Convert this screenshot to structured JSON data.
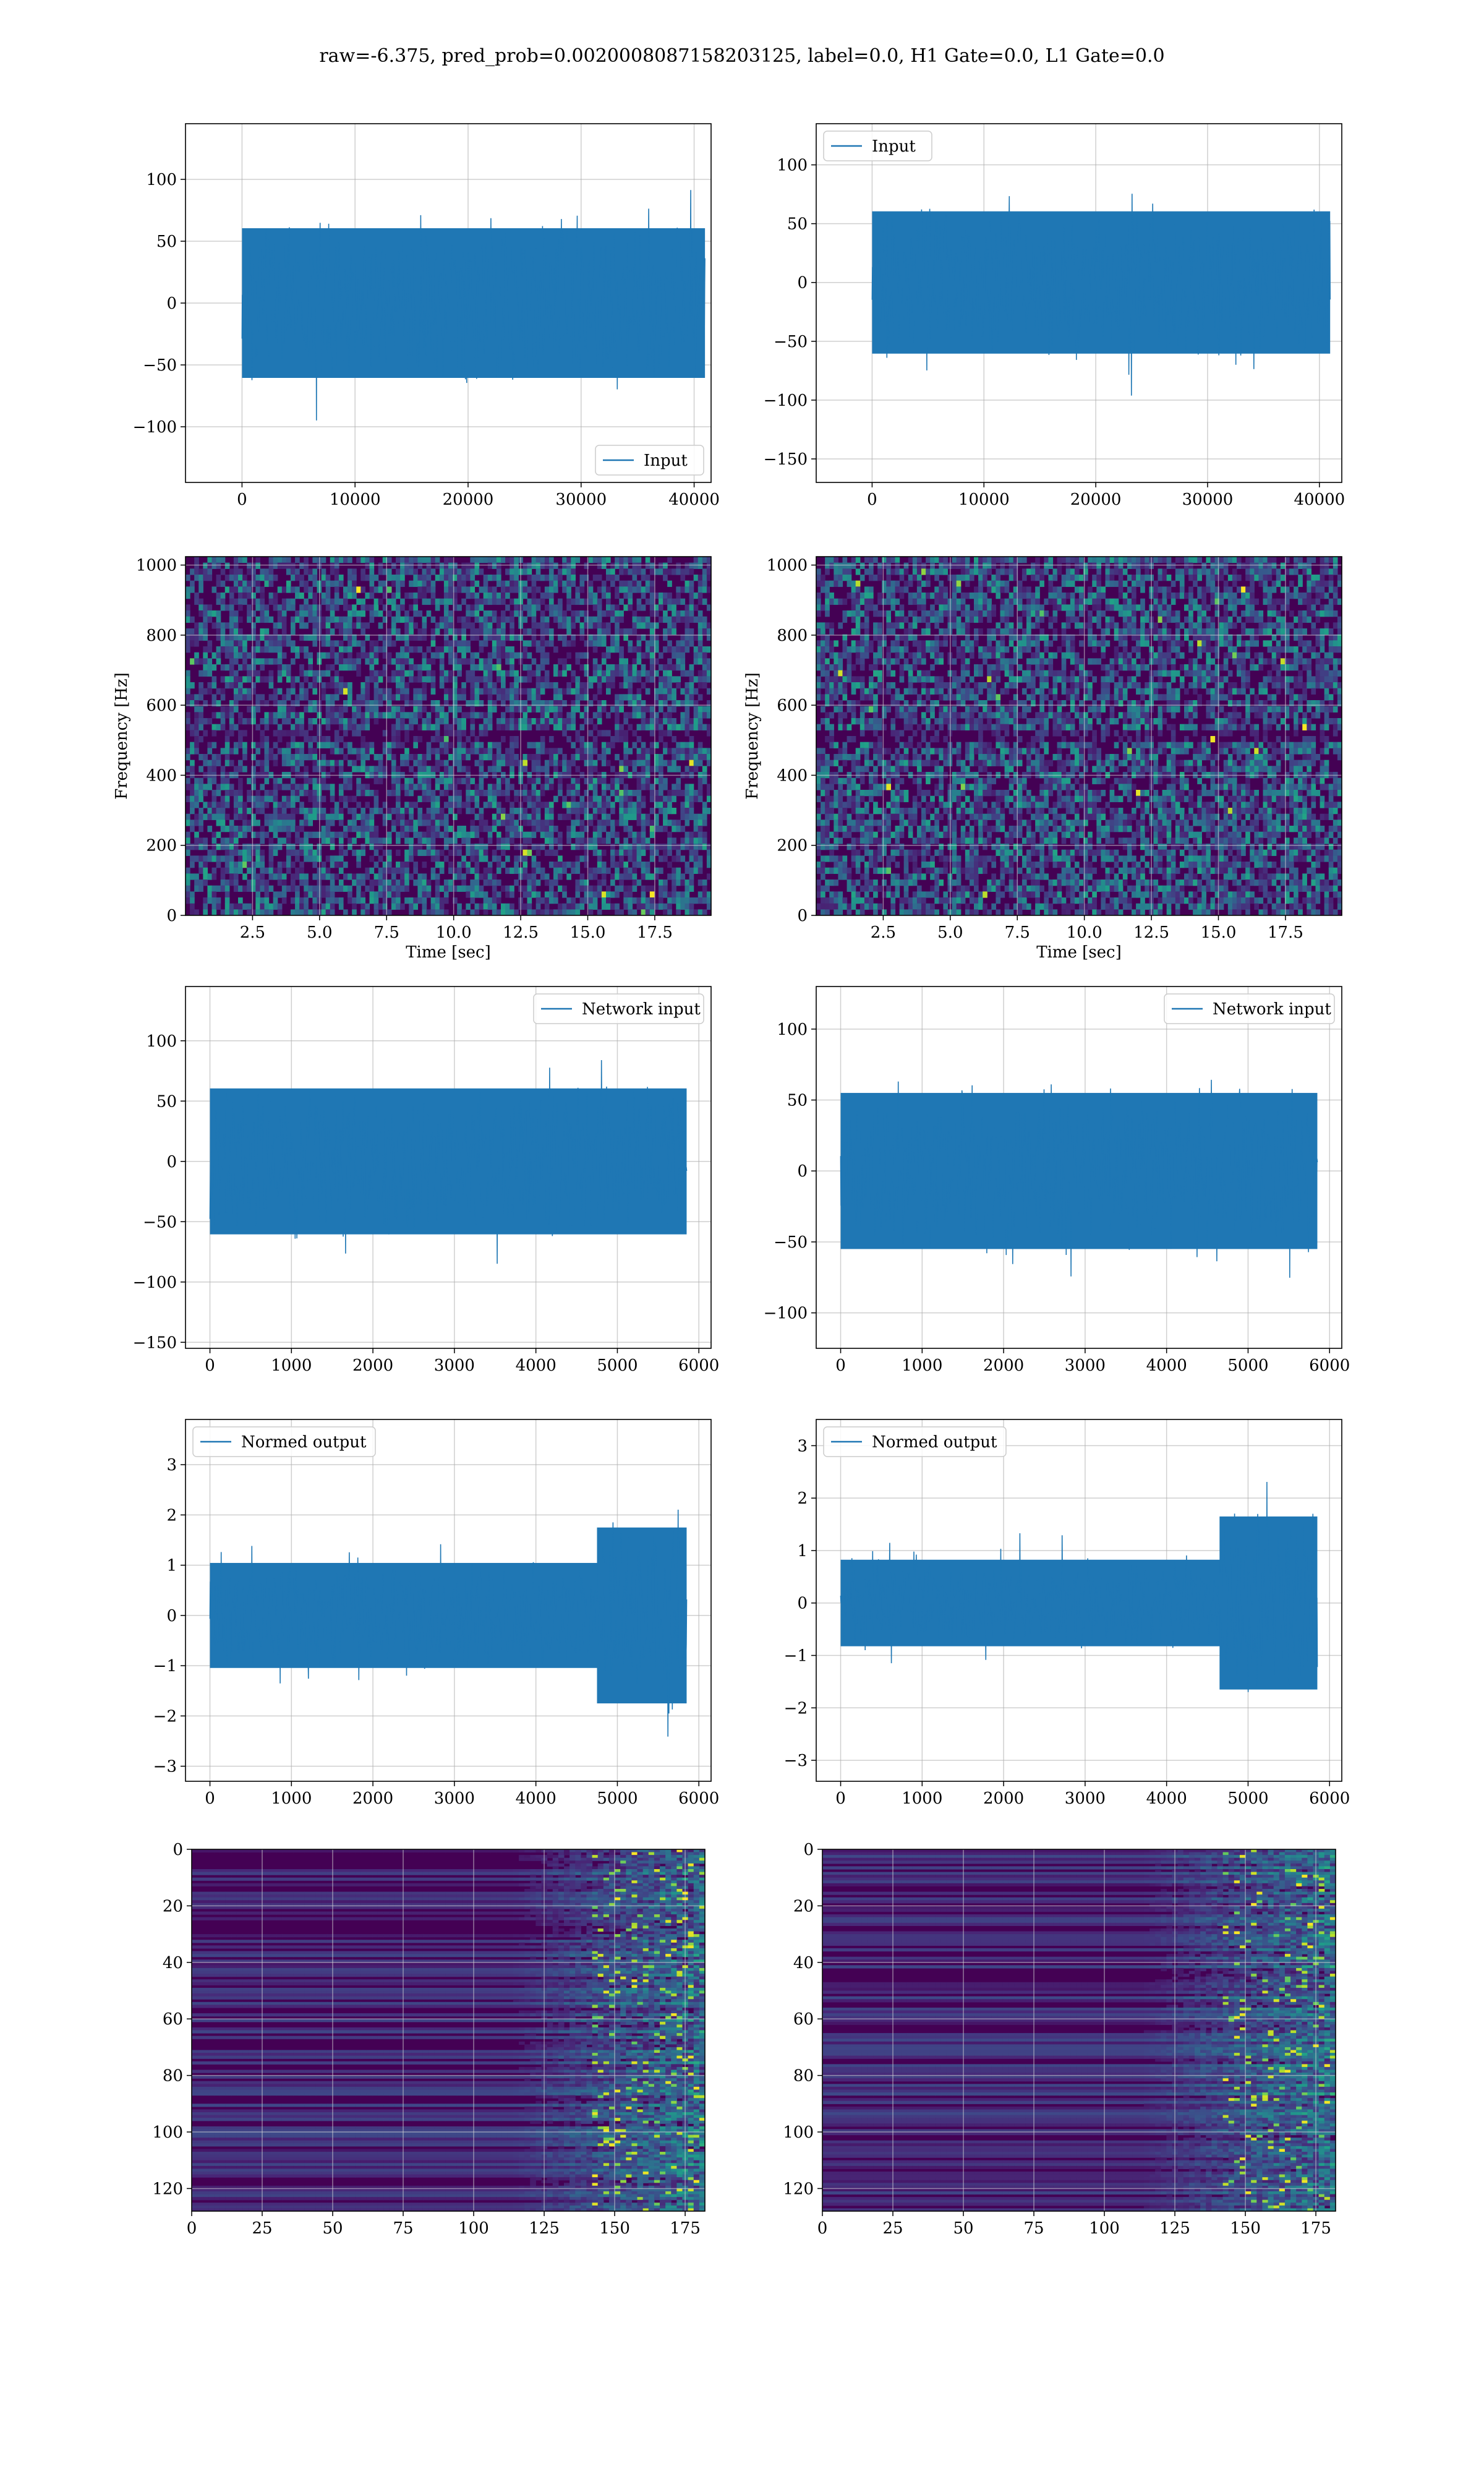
{
  "suptitle": "raw=-6.375, pred_prob=0.0020008087158203125, label=0.0, H1 Gate=0.0, L1 Gate=0.0",
  "colors": {
    "line": "#1f77b4",
    "grid": "#b0b0b0",
    "viridis_low": "#440154",
    "viridis_high": "#fde725"
  },
  "chart_data": [
    {
      "type": "line",
      "xlim": [
        -5000,
        41500
      ],
      "ylim": [
        -145,
        145
      ],
      "xticks": [
        0,
        10000,
        20000,
        30000,
        40000
      ],
      "xtick_labels": [
        "0",
        "10000",
        "20000",
        "30000",
        "40000"
      ],
      "yticks": [
        -100,
        -50,
        0,
        50,
        100
      ],
      "ytick_labels": [
        "−100",
        "−50",
        "0",
        "50",
        "100"
      ],
      "xlabel": "",
      "ylabel": "",
      "grid": true,
      "legend": "lower-right",
      "series": [
        {
          "name": "Input",
          "x_range": [
            0,
            40960
          ],
          "amplitude": 110,
          "seed": 11
        }
      ]
    },
    {
      "type": "line",
      "xlim": [
        -5000,
        42000
      ],
      "ylim": [
        -170,
        135
      ],
      "xticks": [
        0,
        10000,
        20000,
        30000,
        40000
      ],
      "xtick_labels": [
        "0",
        "10000",
        "20000",
        "30000",
        "40000"
      ],
      "yticks": [
        -150,
        -100,
        -50,
        0,
        50,
        100
      ],
      "ytick_labels": [
        "−150",
        "−100",
        "−50",
        "0",
        "50",
        "100"
      ],
      "xlabel": "",
      "ylabel": "",
      "grid": true,
      "legend": "top-left",
      "series": [
        {
          "name": "Input",
          "x_range": [
            0,
            40960
          ],
          "amplitude": 110,
          "seed": 23
        }
      ]
    },
    {
      "type": "heatmap",
      "xlim": [
        0,
        19.6
      ],
      "ylim": [
        0,
        1024
      ],
      "xticks": [
        2.5,
        5.0,
        7.5,
        10.0,
        12.5,
        15.0,
        17.5
      ],
      "xtick_labels": [
        "2.5",
        "5.0",
        "7.5",
        "10.0",
        "12.5",
        "15.0",
        "17.5"
      ],
      "yticks": [
        0,
        200,
        400,
        600,
        800,
        1000
      ],
      "ytick_labels": [
        "0",
        "200",
        "400",
        "600",
        "800",
        "1000"
      ],
      "xlabel": "Time [sec]",
      "ylabel": "Frequency [Hz]",
      "grid": true,
      "colormap": "viridis",
      "seed": 31
    },
    {
      "type": "heatmap",
      "xlim": [
        0,
        19.6
      ],
      "ylim": [
        0,
        1024
      ],
      "xticks": [
        2.5,
        5.0,
        7.5,
        10.0,
        12.5,
        15.0,
        17.5
      ],
      "xtick_labels": [
        "2.5",
        "5.0",
        "7.5",
        "10.0",
        "12.5",
        "15.0",
        "17.5"
      ],
      "yticks": [
        0,
        200,
        400,
        600,
        800,
        1000
      ],
      "ytick_labels": [
        "0",
        "200",
        "400",
        "600",
        "800",
        "1000"
      ],
      "xlabel": "Time [sec]",
      "ylabel": "Frequency [Hz]",
      "grid": true,
      "colormap": "viridis",
      "seed": 47
    },
    {
      "type": "line",
      "xlim": [
        -300,
        6150
      ],
      "ylim": [
        -155,
        145
      ],
      "xticks": [
        0,
        1000,
        2000,
        3000,
        4000,
        5000,
        6000
      ],
      "xtick_labels": [
        "0",
        "1000",
        "2000",
        "3000",
        "4000",
        "5000",
        "6000"
      ],
      "yticks": [
        -150,
        -100,
        -50,
        0,
        50,
        100
      ],
      "ytick_labels": [
        "−150",
        "−100",
        "−50",
        "0",
        "50",
        "100"
      ],
      "xlabel": "",
      "ylabel": "",
      "grid": true,
      "legend": "top-right",
      "series": [
        {
          "name": "Network input",
          "x_range": [
            0,
            5850
          ],
          "amplitude": 110,
          "seed": 53
        }
      ]
    },
    {
      "type": "line",
      "xlim": [
        -300,
        6150
      ],
      "ylim": [
        -125,
        130
      ],
      "xticks": [
        0,
        1000,
        2000,
        3000,
        4000,
        5000,
        6000
      ],
      "xtick_labels": [
        "0",
        "1000",
        "2000",
        "3000",
        "4000",
        "5000",
        "6000"
      ],
      "yticks": [
        -100,
        -50,
        0,
        50,
        100
      ],
      "ytick_labels": [
        "−100",
        "−50",
        "0",
        "50",
        "100"
      ],
      "xlabel": "",
      "ylabel": "",
      "grid": true,
      "legend": "top-right",
      "series": [
        {
          "name": "Network input",
          "x_range": [
            0,
            5850
          ],
          "amplitude": 100,
          "seed": 61
        }
      ]
    },
    {
      "type": "line",
      "xlim": [
        -300,
        6150
      ],
      "ylim": [
        -3.3,
        3.9
      ],
      "xticks": [
        0,
        1000,
        2000,
        3000,
        4000,
        5000,
        6000
      ],
      "xtick_labels": [
        "0",
        "1000",
        "2000",
        "3000",
        "4000",
        "5000",
        "6000"
      ],
      "yticks": [
        -3,
        -2,
        -1,
        0,
        1,
        2,
        3
      ],
      "ytick_labels": [
        "−3",
        "−2",
        "−1",
        "0",
        "1",
        "2",
        "3"
      ],
      "xlabel": "",
      "ylabel": "",
      "grid": true,
      "legend": "top-left",
      "series": [
        {
          "name": "Normed output",
          "x_range": [
            0,
            5850
          ],
          "amplitude": 1.9,
          "burst_start": 4750,
          "burst_amplitude": 3.5,
          "seed": 71
        }
      ]
    },
    {
      "type": "line",
      "xlim": [
        -300,
        6150
      ],
      "ylim": [
        -3.4,
        3.5
      ],
      "xticks": [
        0,
        1000,
        2000,
        3000,
        4000,
        5000,
        6000
      ],
      "xtick_labels": [
        "0",
        "1000",
        "2000",
        "3000",
        "4000",
        "5000",
        "6000"
      ],
      "yticks": [
        -3,
        -2,
        -1,
        0,
        1,
        2,
        3
      ],
      "ytick_labels": [
        "−3",
        "−2",
        "−1",
        "0",
        "1",
        "2",
        "3"
      ],
      "xlabel": "",
      "ylabel": "",
      "grid": true,
      "legend": "top-left",
      "series": [
        {
          "name": "Normed output",
          "x_range": [
            0,
            5850
          ],
          "amplitude": 1.5,
          "burst_start": 4650,
          "burst_amplitude": 3.3,
          "seed": 83
        }
      ]
    },
    {
      "type": "heatmap",
      "xlim": [
        0,
        182
      ],
      "ylim": [
        128,
        0
      ],
      "xticks": [
        0,
        25,
        50,
        75,
        100,
        125,
        150,
        175
      ],
      "xtick_labels": [
        "0",
        "25",
        "50",
        "75",
        "100",
        "125",
        "150",
        "175"
      ],
      "yticks": [
        0,
        20,
        40,
        60,
        80,
        100,
        120
      ],
      "ytick_labels": [
        "0",
        "20",
        "40",
        "60",
        "80",
        "100",
        "120"
      ],
      "xlabel": "",
      "ylabel": "",
      "grid": true,
      "colormap": "viridis",
      "seed": 97
    },
    {
      "type": "heatmap",
      "xlim": [
        0,
        182
      ],
      "ylim": [
        128,
        0
      ],
      "xticks": [
        0,
        25,
        50,
        75,
        100,
        125,
        150,
        175
      ],
      "xtick_labels": [
        "0",
        "25",
        "50",
        "75",
        "100",
        "125",
        "150",
        "175"
      ],
      "yticks": [
        0,
        20,
        40,
        60,
        80,
        100,
        120
      ],
      "ytick_labels": [
        "0",
        "20",
        "40",
        "60",
        "80",
        "100",
        "120"
      ],
      "xlabel": "",
      "ylabel": "",
      "grid": true,
      "colormap": "viridis",
      "seed": 101
    }
  ]
}
